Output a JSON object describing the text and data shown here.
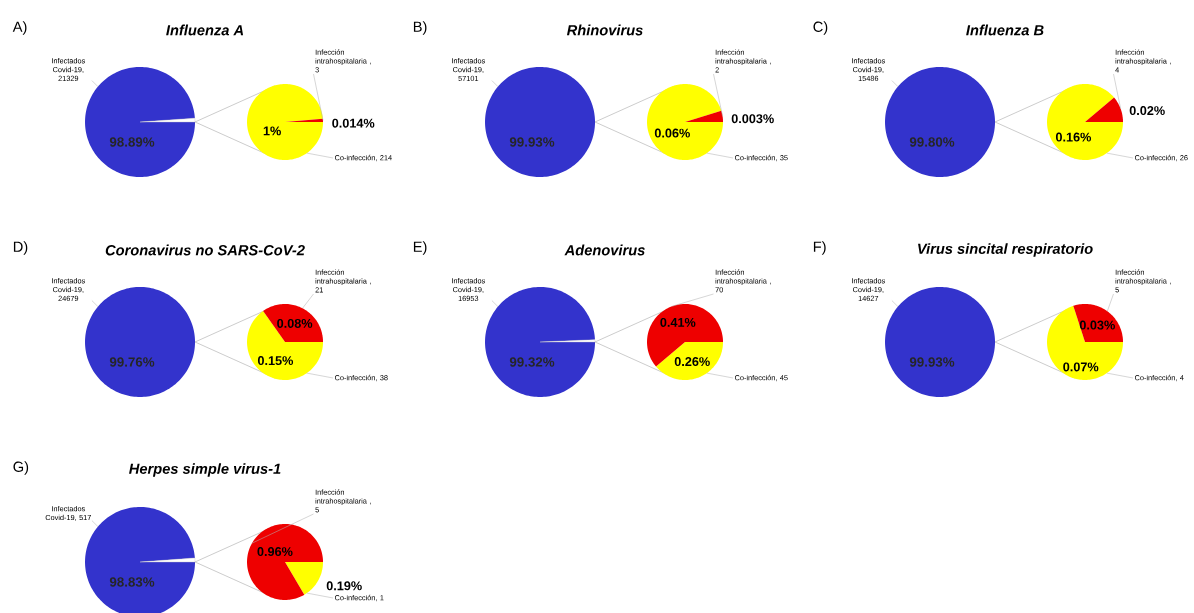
{
  "chart_data": [
    {
      "type": "pie",
      "title": "Influenza A",
      "annotations": [
        "A)"
      ],
      "categories": [
        "Infectados Covid-19, 21329",
        null
      ],
      "values": [
        98.89,
        1.11
      ],
      "colors": [
        "#3333cc",
        "#ffffff"
      ],
      "value_labels": [
        "98.89%",
        null
      ]
    },
    {
      "type": "pie",
      "categories": [
        "Co-infección, 214",
        "Infección intrahospitalaria , 3"
      ],
      "values": [
        1,
        0.014
      ],
      "colors": [
        "#ffff00",
        "#ee0000"
      ],
      "value_labels": [
        "1%",
        "0.014%"
      ]
    },
    {
      "type": "pie",
      "title": "Rhinovirus",
      "annotations": [
        "B)"
      ],
      "categories": [
        "Infectados Covid-19, 57101"
      ],
      "values": [
        99.93
      ],
      "colors": [
        "#3333cc"
      ],
      "value_labels": [
        "99.93%"
      ]
    },
    {
      "type": "pie",
      "categories": [
        "Co-infección, 35",
        "Infección intrahospitalaria , 2"
      ],
      "values": [
        0.06,
        0.003
      ],
      "colors": [
        "#ffff00",
        "#ee0000"
      ],
      "value_labels": [
        "0.06%",
        "0.003%"
      ]
    },
    {
      "type": "pie",
      "title": "Influenza B",
      "annotations": [
        "C)"
      ],
      "categories": [
        "Infectados Covid-19, 15486"
      ],
      "values": [
        99.8
      ],
      "colors": [
        "#3333cc"
      ],
      "value_labels": [
        "99.80%"
      ]
    },
    {
      "type": "pie",
      "categories": [
        "Co-infección, 26",
        "Infección intrahospitalaria , 4"
      ],
      "values": [
        0.16,
        0.02
      ],
      "colors": [
        "#ffff00",
        "#ee0000"
      ],
      "value_labels": [
        "0.16%",
        "0.02%"
      ]
    },
    {
      "type": "pie",
      "title": "Coronavirus no SARS-CoV-2",
      "annotations": [
        "D)"
      ],
      "categories": [
        "Infectados Covid-19, 24679"
      ],
      "values": [
        99.76
      ],
      "colors": [
        "#3333cc"
      ],
      "value_labels": [
        "99.76%"
      ]
    },
    {
      "type": "pie",
      "categories": [
        "Co-infección, 38",
        "Infección intrahospitalaria , 21"
      ],
      "values": [
        0.15,
        0.08
      ],
      "colors": [
        "#ffff00",
        "#ee0000"
      ],
      "value_labels": [
        "0.15%",
        "0.08%"
      ]
    },
    {
      "type": "pie",
      "title": "Adenovirus",
      "annotations": [
        "E)"
      ],
      "categories": [
        "Infectados Covid-19, 16953",
        null
      ],
      "values": [
        99.32,
        0.68
      ],
      "colors": [
        "#3333cc",
        "#ffffff"
      ],
      "value_labels": [
        "99.32%",
        null
      ]
    },
    {
      "type": "pie",
      "categories": [
        "Co-infección, 45",
        "Infección intrahospitalaria , 70"
      ],
      "values": [
        0.26,
        0.41
      ],
      "colors": [
        "#ffff00",
        "#ee0000"
      ],
      "value_labels": [
        "0.26%",
        "0.41%"
      ]
    },
    {
      "type": "pie",
      "title": "Virus sincital respiratorio",
      "annotations": [
        "F)"
      ],
      "categories": [
        "Infectados Covid-19, 14627"
      ],
      "values": [
        99.93
      ],
      "colors": [
        "#3333cc"
      ],
      "value_labels": [
        "99.93%"
      ]
    },
    {
      "type": "pie",
      "categories": [
        "Co-infección, 4",
        "Infección intrahospitalaria , 5"
      ],
      "values": [
        0.07,
        0.03
      ],
      "colors": [
        "#ffff00",
        "#ee0000"
      ],
      "value_labels": [
        "0.07%",
        "0.03%"
      ]
    },
    {
      "type": "pie",
      "title": "Herpes simple virus-1",
      "annotations": [
        "G)"
      ],
      "categories": [
        "Infectados Covid-19, 517",
        null
      ],
      "values": [
        98.83,
        1.17
      ],
      "colors": [
        "#3333cc",
        "#ffffff"
      ],
      "value_labels": [
        "98.83%",
        null
      ]
    },
    {
      "type": "pie",
      "categories": [
        "Co-infección, 1",
        "Infección intrahospitalaria , 5"
      ],
      "values": [
        0.19,
        0.96
      ],
      "colors": [
        "#ffff00",
        "#ee0000"
      ],
      "value_labels": [
        "0.19%",
        "0.96%"
      ]
    }
  ]
}
